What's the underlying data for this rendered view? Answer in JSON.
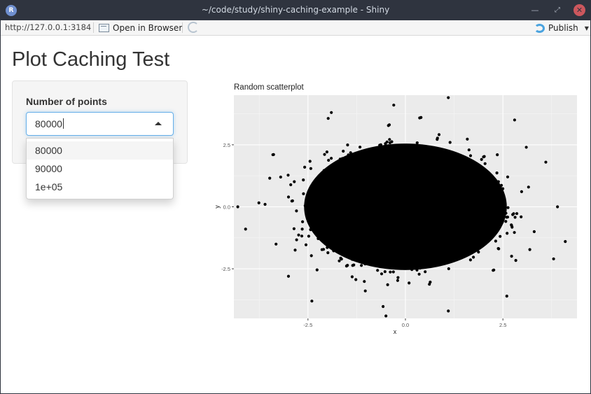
{
  "window": {
    "title": "~/code/study/shiny-caching-example - Shiny",
    "app_icon_letter": "R",
    "minimize_glyph": "—",
    "maximize_glyph": "⤢",
    "close_glyph": "✕"
  },
  "toolbar": {
    "url": "http://127.0.0.1:3184",
    "open_in_browser_label": "Open in Browser",
    "publish_label": "Publish"
  },
  "page": {
    "title": "Plot Caching Test"
  },
  "control": {
    "label": "Number of points",
    "value": "80000",
    "options": [
      "80000",
      "90000",
      "1e+05"
    ],
    "highlighted_index": 0
  },
  "colors": {
    "titlebar_bg": "#2f343f",
    "close_button": "#cc575d",
    "focus_border": "#66afe9",
    "plot_panel_bg": "#ebebeb",
    "point_color": "#000000"
  },
  "chart_data": {
    "type": "scatter",
    "title": "Random scatterplot",
    "xlabel": "x",
    "ylabel": "y",
    "xlim": [
      -4.4,
      4.4
    ],
    "ylim": [
      -4.5,
      4.5
    ],
    "x_ticks": [
      -2.5,
      0.0,
      2.5
    ],
    "x_tick_labels": [
      "-2.5",
      "0.0",
      "2.5"
    ],
    "y_ticks": [
      -2.5,
      0.0,
      2.5
    ],
    "y_tick_labels": [
      "-2.5",
      "0.0",
      "2.5"
    ],
    "grid": true,
    "n_points": 80000,
    "distribution": "standard bivariate normal",
    "outlier_points": [
      {
        "x": 1.1,
        "y": 4.4
      },
      {
        "x": -0.3,
        "y": 4.1
      },
      {
        "x": -1.9,
        "y": 3.8
      },
      {
        "x": 2.8,
        "y": 3.5
      },
      {
        "x": 3.6,
        "y": 1.8
      },
      {
        "x": 3.9,
        "y": 0.0
      },
      {
        "x": 4.1,
        "y": -1.4
      },
      {
        "x": 3.8,
        "y": -2.1
      },
      {
        "x": -4.3,
        "y": 0.0
      },
      {
        "x": -4.1,
        "y": -0.9
      },
      {
        "x": -3.6,
        "y": 0.1
      },
      {
        "x": -3.2,
        "y": 1.2
      },
      {
        "x": -2.4,
        "y": -3.8
      },
      {
        "x": -0.5,
        "y": -4.4
      },
      {
        "x": 1.1,
        "y": -4.2
      },
      {
        "x": 2.6,
        "y": -3.6
      },
      {
        "x": -3.0,
        "y": -2.8
      },
      {
        "x": 3.1,
        "y": 2.4
      },
      {
        "x": -3.4,
        "y": 2.1
      },
      {
        "x": 0.4,
        "y": 3.6
      }
    ]
  }
}
